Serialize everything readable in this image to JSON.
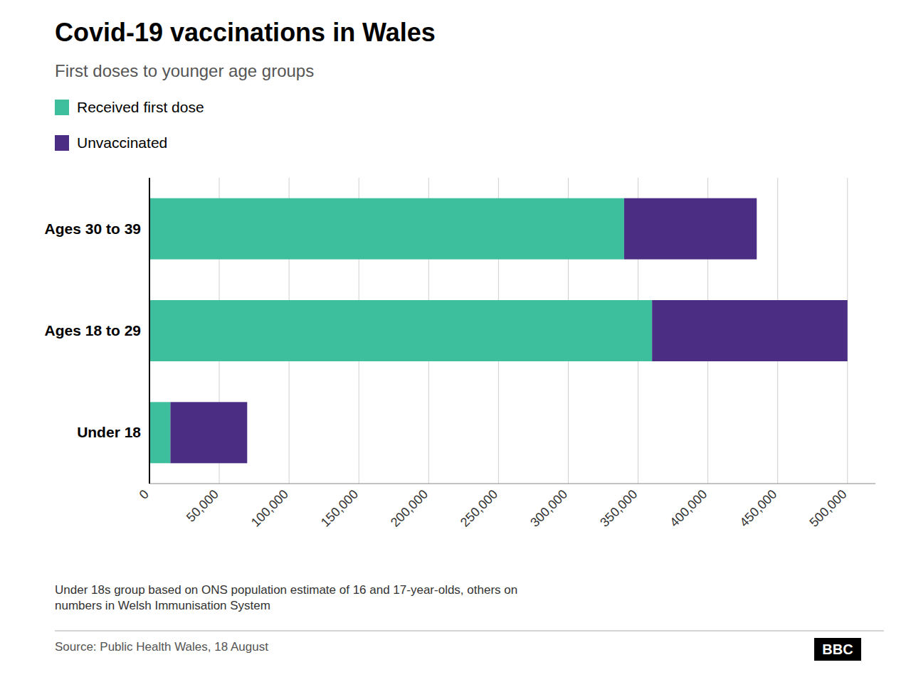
{
  "chart_data": {
    "type": "bar",
    "orientation": "horizontal",
    "stacked": true,
    "title": "Covid-19 vaccinations in Wales",
    "subtitle": "First doses to younger age groups",
    "categories": [
      "Under 18",
      "Ages 18 to 29",
      "Ages 30 to 39"
    ],
    "series": [
      {
        "name": "Received first dose",
        "color": "#3dbf9e",
        "values": [
          15000,
          360000,
          340000
        ]
      },
      {
        "name": "Unvaccinated",
        "color": "#4b2e84",
        "values": [
          55000,
          140000,
          95000
        ]
      }
    ],
    "xlim": [
      0,
      520000
    ],
    "xticks": [
      0,
      {
        "value": 50000,
        "label": "50,000"
      },
      {
        "value": 100000,
        "label": "100,000"
      },
      {
        "value": 150000,
        "label": "150,000"
      },
      {
        "value": 200000,
        "label": "200,000"
      },
      {
        "value": 250000,
        "label": "250,000"
      },
      {
        "value": 300000,
        "label": "300,000"
      },
      {
        "value": 350000,
        "label": "350,000"
      },
      {
        "value": 400000,
        "label": "400,000"
      },
      {
        "value": 450000,
        "label": "450,000"
      },
      {
        "value": 500000,
        "label": "500,000"
      }
    ],
    "grid": true,
    "legend": "upper left",
    "annotations": [
      "Under 18s group based on ONS population estimate of 16 and 17-year-olds, others on\nnumbers in Welsh Immunisation System",
      "Source: Public Health Wales, 18 August",
      "BBC"
    ]
  }
}
